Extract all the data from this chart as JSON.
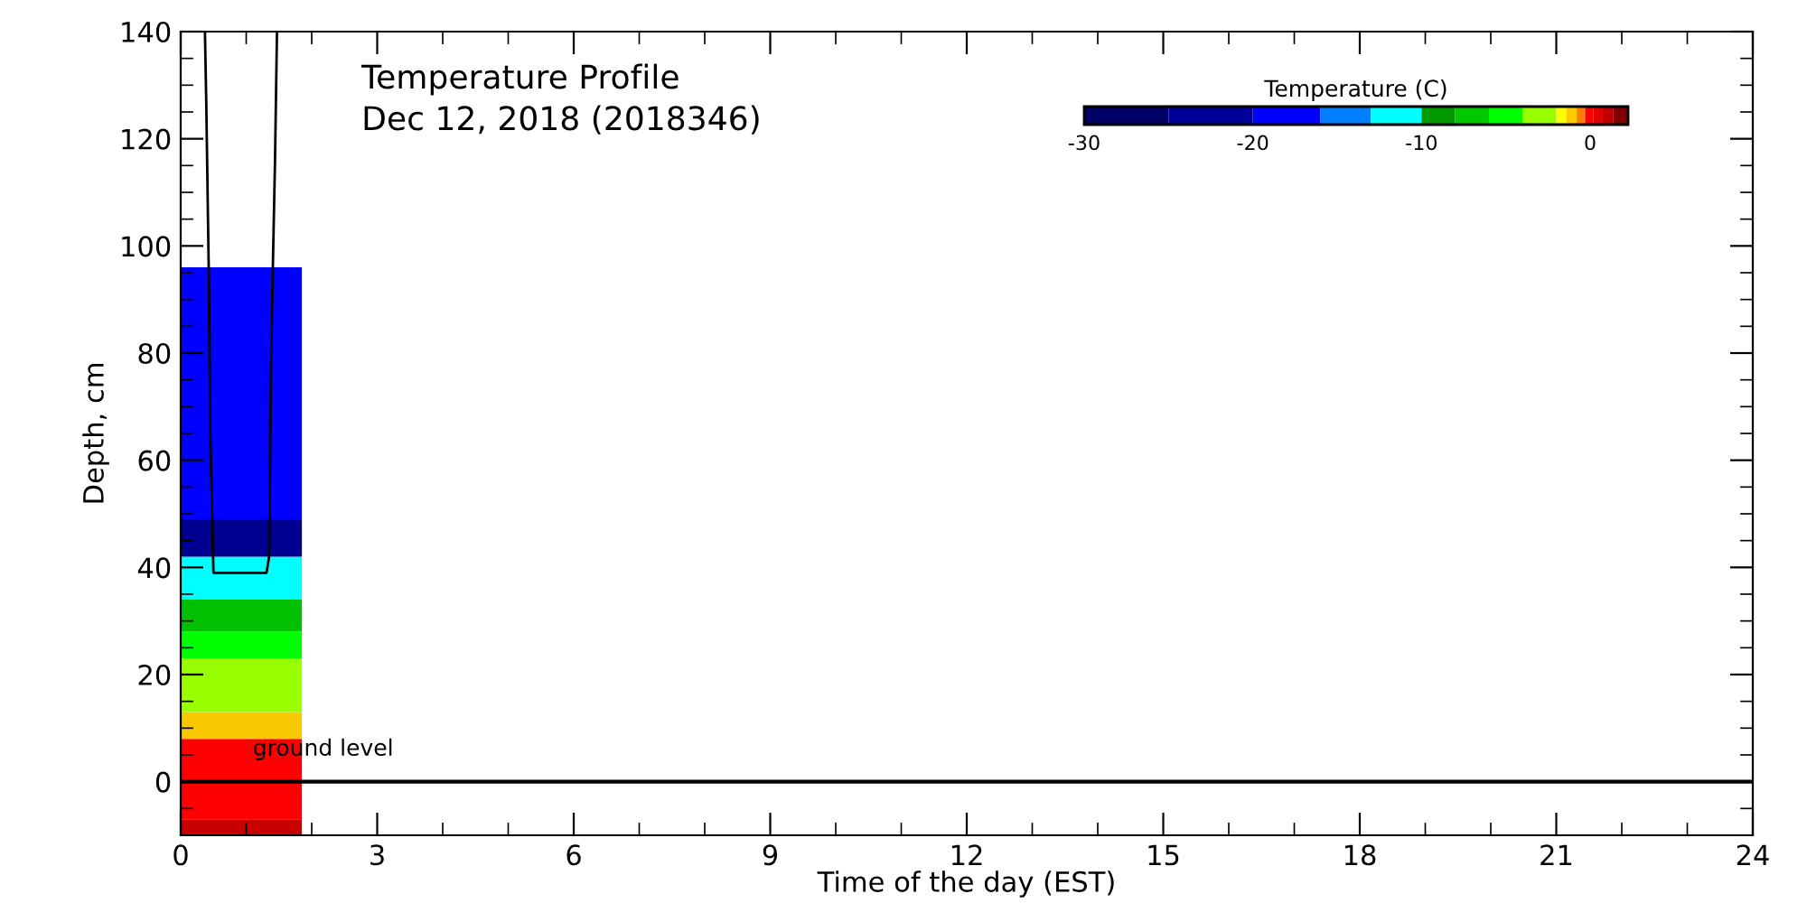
{
  "chart_data": [
    {
      "type": "bar",
      "title": "Temperature Profile\nDec 12, 2018 (2018346)",
      "xlabel": "Time of the day (EST)",
      "ylabel": "Depth, cm",
      "xlim": [
        0,
        24
      ],
      "xticks": [
        0,
        3,
        6,
        9,
        12,
        15,
        18,
        21,
        24
      ],
      "ylim": [
        -10,
        140
      ],
      "yticks": [
        0,
        20,
        40,
        60,
        80,
        100,
        120,
        140
      ],
      "series": [
        {
          "color": "#c80000",
          "x": [
            0.925
          ],
          "base": [
            -10
          ],
          "values": [
            3
          ]
        },
        {
          "color": "#ff0000",
          "x": [
            0.925
          ],
          "base": [
            -7
          ],
          "values": [
            15
          ]
        },
        {
          "color": "#f8c800",
          "x": [
            0.925
          ],
          "base": [
            8
          ],
          "values": [
            5
          ]
        },
        {
          "color": "#99ff00",
          "x": [
            0.925
          ],
          "base": [
            13
          ],
          "values": [
            10
          ]
        },
        {
          "color": "#00ff00",
          "x": [
            0.925
          ],
          "base": [
            23
          ],
          "values": [
            5
          ]
        },
        {
          "color": "#00c000",
          "x": [
            0.925
          ],
          "base": [
            28
          ],
          "values": [
            6
          ]
        },
        {
          "color": "#00ffff",
          "x": [
            0.925
          ],
          "base": [
            34
          ],
          "values": [
            8
          ]
        },
        {
          "color": "#000090",
          "x": [
            0.925
          ],
          "base": [
            42
          ],
          "values": [
            7
          ]
        },
        {
          "color": "#0000ff",
          "x": [
            0.925
          ],
          "base": [
            49
          ],
          "values": [
            47
          ]
        },
        {
          "type": "line",
          "color": "#000000",
          "x": [
            0.37,
            0.39,
            0.43,
            0.45,
            0.5,
            1.31,
            1.35,
            1.38,
            1.41,
            1.44,
            1.47
          ],
          "values": [
            140,
            127,
            94,
            66,
            39,
            39,
            42,
            79,
            98,
            116,
            140
          ]
        }
      ],
      "ref_lines": [
        {
          "axis": "y",
          "value": 0,
          "label": "ground level",
          "color": "#000000"
        }
      ],
      "grid": false
    },
    {
      "type": "bar",
      "orientation": "horizontal",
      "title": "Temperature (C)",
      "categories": [
        null
      ],
      "xlim": [
        -30,
        2.25
      ],
      "xticks": [
        -30,
        -20,
        -10,
        0
      ],
      "tick_labels": "x",
      "series": [
        {
          "color": "#000066",
          "base": [
            -30
          ],
          "values": [
            5
          ]
        },
        {
          "color": "#000099",
          "base": [
            -25
          ],
          "values": [
            5
          ]
        },
        {
          "color": "#0000ff",
          "base": [
            -20
          ],
          "values": [
            4
          ]
        },
        {
          "color": "#0080ff",
          "base": [
            -16
          ],
          "values": [
            3
          ]
        },
        {
          "color": "#00ffff",
          "base": [
            -13
          ],
          "values": [
            3
          ]
        },
        {
          "color": "#009900",
          "base": [
            -10
          ],
          "values": [
            2
          ]
        },
        {
          "color": "#00c800",
          "base": [
            -8
          ],
          "values": [
            2
          ]
        },
        {
          "color": "#00ff00",
          "base": [
            -6
          ],
          "values": [
            2
          ]
        },
        {
          "color": "#99ff00",
          "base": [
            -4
          ],
          "values": [
            2
          ]
        },
        {
          "color": "#ffff00",
          "base": [
            -2
          ],
          "values": [
            0.6
          ]
        },
        {
          "color": "#ffc800",
          "base": [
            -1.4
          ],
          "values": [
            0.6
          ]
        },
        {
          "color": "#ff8000",
          "base": [
            -0.8
          ],
          "values": [
            0.5
          ]
        },
        {
          "color": "#ff0000",
          "base": [
            -0.3
          ],
          "values": [
            0.5
          ]
        },
        {
          "color": "#e00000",
          "base": [
            0.2
          ],
          "values": [
            0.5
          ]
        },
        {
          "color": "#c00000",
          "base": [
            0.7
          ],
          "values": [
            0.65
          ]
        },
        {
          "color": "#800000",
          "base": [
            1.35
          ],
          "values": [
            0.9
          ]
        }
      ],
      "grid": false
    }
  ]
}
